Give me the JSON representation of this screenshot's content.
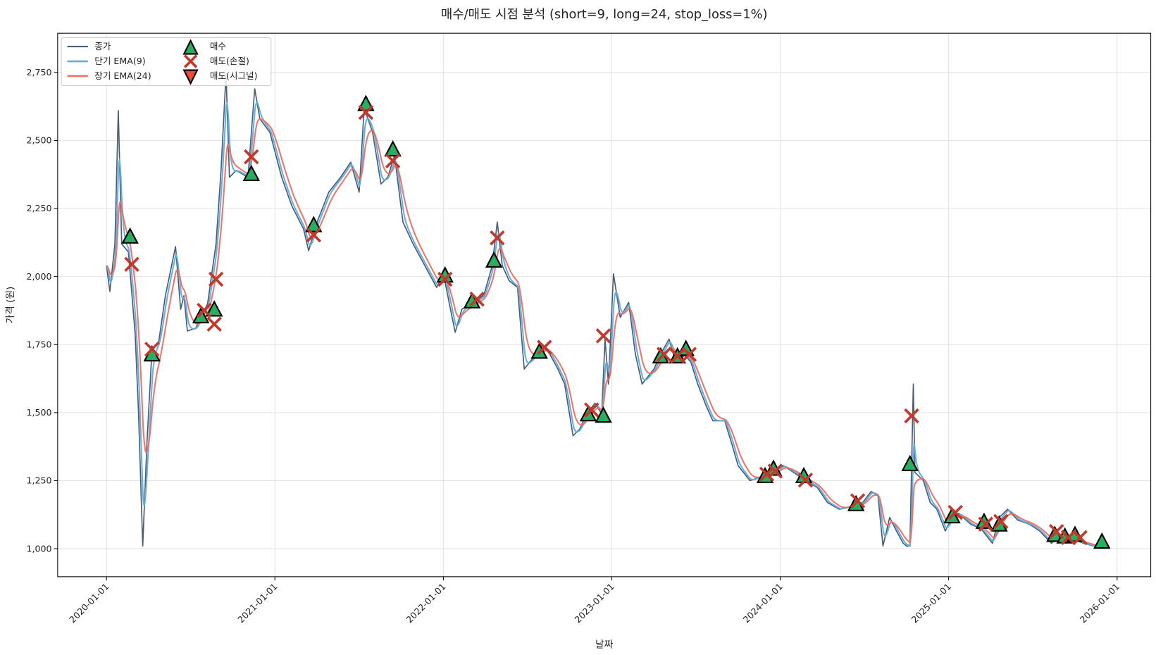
{
  "chart_data": {
    "type": "line",
    "title": "매수/매도 시점 분석 (short=9, long=24, stop_loss=1%)",
    "xlabel": "날짜",
    "ylabel": "가격 (원)",
    "x_unit": "decimal year",
    "xlim": [
      2019.71,
      2026.2
    ],
    "ylim": [
      897,
      2894
    ],
    "grid": true,
    "legend_placement": "top-left",
    "x_ticks": [
      {
        "value": 2020,
        "label": "2020-01-01"
      },
      {
        "value": 2021,
        "label": "2021-01-01"
      },
      {
        "value": 2022,
        "label": "2022-01-01"
      },
      {
        "value": 2023,
        "label": "2023-01-01"
      },
      {
        "value": 2024,
        "label": "2024-01-01"
      },
      {
        "value": 2025,
        "label": "2025-01-01"
      },
      {
        "value": 2026,
        "label": "2026-01-01"
      }
    ],
    "y_ticks": [
      {
        "value": 1000,
        "label": "1,000"
      },
      {
        "value": 1250,
        "label": "1,250"
      },
      {
        "value": 1500,
        "label": "1,500"
      },
      {
        "value": 1750,
        "label": "1,750"
      },
      {
        "value": 2000,
        "label": "2,000"
      },
      {
        "value": 2250,
        "label": "2,250"
      },
      {
        "value": 2500,
        "label": "2,500"
      },
      {
        "value": 2750,
        "label": "2,750"
      }
    ],
    "legend": {
      "close": "종가",
      "ema_short": "단기 EMA(9)",
      "ema_long": "장기 EMA(24)",
      "buy": "매수",
      "sell_stop": "매도(손절)",
      "sell_signal": "매도(시그널)"
    },
    "colors": {
      "close": "#4d5d70",
      "ema_short": "#5dade2",
      "ema_long": "#ec7063",
      "buy": "#27ae60",
      "sell_stop": "#c0392b",
      "sell_signal": "#e74c3c"
    },
    "ema_spans": {
      "short": 9,
      "long": 24
    },
    "close": [
      [
        2020.0,
        2040
      ],
      [
        2020.02,
        1945
      ],
      [
        2020.05,
        2120
      ],
      [
        2020.07,
        2610
      ],
      [
        2020.09,
        2120
      ],
      [
        2020.13,
        2090
      ],
      [
        2020.17,
        1790
      ],
      [
        2020.19,
        1500
      ],
      [
        2020.215,
        1010
      ],
      [
        2020.24,
        1390
      ],
      [
        2020.27,
        1730
      ],
      [
        2020.31,
        1760
      ],
      [
        2020.35,
        1930
      ],
      [
        2020.41,
        2110
      ],
      [
        2020.44,
        1880
      ],
      [
        2020.46,
        1930
      ],
      [
        2020.48,
        1800
      ],
      [
        2020.53,
        1810
      ],
      [
        2020.6,
        1900
      ],
      [
        2020.65,
        2120
      ],
      [
        2020.68,
        2390
      ],
      [
        2020.71,
        2745
      ],
      [
        2020.73,
        2365
      ],
      [
        2020.77,
        2390
      ],
      [
        2020.84,
        2365
      ],
      [
        2020.88,
        2690
      ],
      [
        2020.91,
        2580
      ],
      [
        2020.97,
        2530
      ],
      [
        2021.04,
        2365
      ],
      [
        2021.1,
        2260
      ],
      [
        2021.17,
        2175
      ],
      [
        2021.2,
        2095
      ],
      [
        2021.25,
        2200
      ],
      [
        2021.32,
        2310
      ],
      [
        2021.39,
        2365
      ],
      [
        2021.45,
        2420
      ],
      [
        2021.5,
        2310
      ],
      [
        2021.53,
        2620
      ],
      [
        2021.58,
        2530
      ],
      [
        2021.63,
        2340
      ],
      [
        2021.67,
        2365
      ],
      [
        2021.71,
        2445
      ],
      [
        2021.76,
        2200
      ],
      [
        2021.82,
        2120
      ],
      [
        2021.89,
        2040
      ],
      [
        2021.96,
        1960
      ],
      [
        2022.0,
        2010
      ],
      [
        2022.07,
        1795
      ],
      [
        2022.11,
        1880
      ],
      [
        2022.18,
        1905
      ],
      [
        2022.24,
        1930
      ],
      [
        2022.29,
        2040
      ],
      [
        2022.32,
        2200
      ],
      [
        2022.35,
        2040
      ],
      [
        2022.39,
        1985
      ],
      [
        2022.44,
        1960
      ],
      [
        2022.48,
        1660
      ],
      [
        2022.55,
        1715
      ],
      [
        2022.61,
        1740
      ],
      [
        2022.68,
        1660
      ],
      [
        2022.72,
        1605
      ],
      [
        2022.77,
        1415
      ],
      [
        2022.81,
        1440
      ],
      [
        2022.85,
        1495
      ],
      [
        2022.9,
        1535
      ],
      [
        2022.94,
        1495
      ],
      [
        2022.96,
        1770
      ],
      [
        2022.98,
        1605
      ],
      [
        2023.01,
        2010
      ],
      [
        2023.05,
        1850
      ],
      [
        2023.1,
        1905
      ],
      [
        2023.14,
        1715
      ],
      [
        2023.18,
        1605
      ],
      [
        2023.25,
        1660
      ],
      [
        2023.29,
        1715
      ],
      [
        2023.34,
        1770
      ],
      [
        2023.38,
        1685
      ],
      [
        2023.43,
        1715
      ],
      [
        2023.47,
        1685
      ],
      [
        2023.51,
        1605
      ],
      [
        2023.56,
        1525
      ],
      [
        2023.6,
        1470
      ],
      [
        2023.67,
        1470
      ],
      [
        2023.71,
        1390
      ],
      [
        2023.75,
        1305
      ],
      [
        2023.82,
        1250
      ],
      [
        2023.89,
        1265
      ],
      [
        2023.95,
        1280
      ],
      [
        2024.02,
        1305
      ],
      [
        2024.08,
        1280
      ],
      [
        2024.15,
        1250
      ],
      [
        2024.22,
        1225
      ],
      [
        2024.28,
        1170
      ],
      [
        2024.35,
        1145
      ],
      [
        2024.45,
        1160
      ],
      [
        2024.49,
        1170
      ],
      [
        2024.54,
        1210
      ],
      [
        2024.58,
        1195
      ],
      [
        2024.61,
        1010
      ],
      [
        2024.65,
        1115
      ],
      [
        2024.69,
        1065
      ],
      [
        2024.73,
        1020
      ],
      [
        2024.77,
        1010
      ],
      [
        2024.79,
        1605
      ],
      [
        2024.8,
        1280
      ],
      [
        2024.75,
        1010
      ],
      [
        2024.85,
        1250
      ],
      [
        2024.89,
        1170
      ],
      [
        2024.93,
        1145
      ],
      [
        2024.98,
        1065
      ],
      [
        2025.02,
        1115
      ],
      [
        2025.06,
        1130
      ],
      [
        2025.13,
        1090
      ],
      [
        2025.19,
        1075
      ],
      [
        2025.26,
        1020
      ],
      [
        2025.3,
        1115
      ],
      [
        2025.35,
        1145
      ],
      [
        2025.41,
        1105
      ],
      [
        2025.48,
        1090
      ],
      [
        2025.54,
        1065
      ],
      [
        2025.61,
        1020
      ],
      [
        2025.67,
        1050
      ],
      [
        2025.74,
        1035
      ],
      [
        2025.8,
        1020
      ],
      [
        2025.86,
        1010
      ],
      [
        2025.92,
        1010
      ]
    ],
    "buy_points": [
      [
        2020.14,
        2148
      ],
      [
        2020.27,
        1715
      ],
      [
        2020.56,
        1855
      ],
      [
        2020.64,
        1880
      ],
      [
        2020.86,
        2378
      ],
      [
        2021.23,
        2190
      ],
      [
        2021.54,
        2635
      ],
      [
        2021.7,
        2468
      ],
      [
        2022.01,
        2005
      ],
      [
        2022.17,
        1910
      ],
      [
        2022.3,
        2060
      ],
      [
        2022.57,
        1725
      ],
      [
        2022.86,
        1495
      ],
      [
        2022.95,
        1490
      ],
      [
        2023.29,
        1708
      ],
      [
        2023.39,
        1708
      ],
      [
        2023.44,
        1735
      ],
      [
        2023.91,
        1268
      ],
      [
        2023.96,
        1295
      ],
      [
        2024.14,
        1268
      ],
      [
        2024.45,
        1165
      ],
      [
        2024.77,
        1312
      ],
      [
        2025.02,
        1120
      ],
      [
        2025.21,
        1100
      ],
      [
        2025.3,
        1090
      ],
      [
        2025.63,
        1052
      ],
      [
        2025.69,
        1046
      ],
      [
        2025.75,
        1052
      ],
      [
        2025.91,
        1027
      ]
    ],
    "sell_stop_points": [
      [
        2020.15,
        2045
      ],
      [
        2020.27,
        1733
      ],
      [
        2020.58,
        1876
      ],
      [
        2020.64,
        1825
      ],
      [
        2020.65,
        1990
      ],
      [
        2020.86,
        2440
      ],
      [
        2021.23,
        2153
      ],
      [
        2021.54,
        2603
      ],
      [
        2021.7,
        2425
      ],
      [
        2022.01,
        1990
      ],
      [
        2022.2,
        1917
      ],
      [
        2022.32,
        2142
      ],
      [
        2022.6,
        1740
      ],
      [
        2022.88,
        1510
      ],
      [
        2022.95,
        1782
      ],
      [
        2023.31,
        1714
      ],
      [
        2023.39,
        1708
      ],
      [
        2023.46,
        1714
      ],
      [
        2023.92,
        1274
      ],
      [
        2023.97,
        1285
      ],
      [
        2024.15,
        1252
      ],
      [
        2024.46,
        1176
      ],
      [
        2024.78,
        1488
      ],
      [
        2025.04,
        1133
      ],
      [
        2025.22,
        1090
      ],
      [
        2025.31,
        1100
      ],
      [
        2025.64,
        1063
      ],
      [
        2025.71,
        1041
      ],
      [
        2025.78,
        1041
      ]
    ],
    "sell_signal_points": []
  }
}
